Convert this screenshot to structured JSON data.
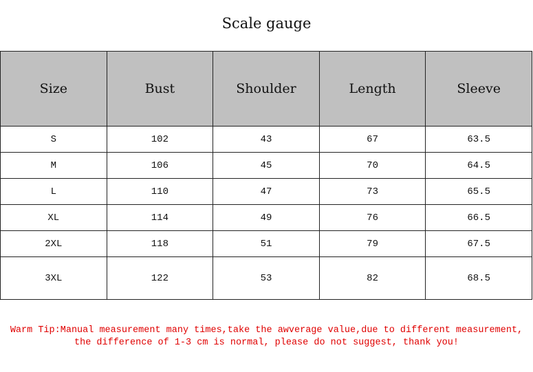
{
  "title": "Scale gauge",
  "table": {
    "headers": [
      "Size",
      "Bust",
      "Shoulder",
      "Length",
      "Sleeve"
    ],
    "rows": [
      [
        "S",
        "102",
        "43",
        "67",
        "63.5"
      ],
      [
        "M",
        "106",
        "45",
        "70",
        "64.5"
      ],
      [
        "L",
        "110",
        "47",
        "73",
        "65.5"
      ],
      [
        "XL",
        "114",
        "49",
        "76",
        "66.5"
      ],
      [
        "2XL",
        "118",
        "51",
        "79",
        "67.5"
      ],
      [
        "3XL",
        "122",
        "53",
        "82",
        "68.5"
      ]
    ]
  },
  "tip": {
    "line1": "Warm Tip:Manual measurement many times,take the awverage value,due to different measurement,",
    "line2": "the difference of 1-3 cm is normal, please do not suggest, thank you!"
  },
  "colors": {
    "header_bg": "#c0c0c0",
    "tip_text": "#e00000"
  }
}
